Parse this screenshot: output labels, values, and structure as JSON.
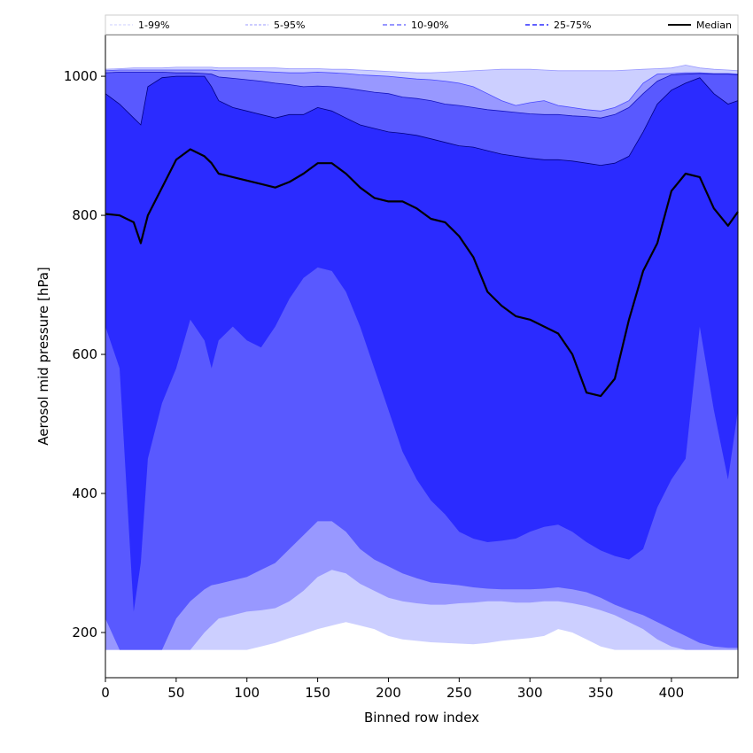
{
  "chart_data": {
    "type": "area",
    "title": "",
    "xlabel": "Binned row index",
    "ylabel": "Aerosol mid pressure [hPa]",
    "xlim": [
      0,
      447
    ],
    "ylim": [
      135,
      1060
    ],
    "xticks": [
      0,
      50,
      100,
      150,
      200,
      250,
      300,
      350,
      400
    ],
    "yticks": [
      200,
      400,
      600,
      800,
      1000
    ],
    "grid": false,
    "legend_position": "top",
    "colors": {
      "band_1_99": "#cccfff",
      "band_5_95": "#9898ff",
      "band_10_90": "#5959ff",
      "band_25_75": "#2b2bff",
      "median": "#000000"
    },
    "legend": [
      {
        "label": "1-99%",
        "style": "band_1_99"
      },
      {
        "label": "5-95%",
        "style": "band_5_95"
      },
      {
        "label": "10-90%",
        "style": "band_10_90"
      },
      {
        "label": "25-75%",
        "style": "band_25_75"
      },
      {
        "label": "Median",
        "style": "median"
      }
    ],
    "x": [
      0,
      10,
      20,
      25,
      30,
      40,
      50,
      60,
      70,
      75,
      80,
      90,
      100,
      110,
      120,
      130,
      140,
      150,
      160,
      170,
      180,
      190,
      200,
      210,
      220,
      230,
      240,
      250,
      260,
      270,
      280,
      290,
      300,
      310,
      320,
      330,
      340,
      350,
      360,
      370,
      380,
      390,
      400,
      410,
      420,
      430,
      440,
      447
    ],
    "bands": [
      {
        "name": "1-99%",
        "lower": [
          175,
          175,
          175,
          175,
          175,
          175,
          175,
          175,
          175,
          175,
          175,
          175,
          175,
          180,
          185,
          192,
          198,
          205,
          210,
          215,
          210,
          205,
          195,
          190,
          188,
          186,
          185,
          184,
          183,
          185,
          188,
          190,
          192,
          195,
          205,
          200,
          190,
          180,
          175,
          175,
          175,
          175,
          175,
          175,
          175,
          175,
          175,
          175
        ],
        "upper": [
          1010,
          1011,
          1012,
          1012,
          1012,
          1012,
          1013,
          1013,
          1013,
          1013,
          1012,
          1012,
          1012,
          1012,
          1012,
          1011,
          1011,
          1011,
          1010,
          1010,
          1009,
          1008,
          1007,
          1006,
          1005,
          1005,
          1006,
          1007,
          1008,
          1009,
          1010,
          1010,
          1010,
          1009,
          1008,
          1008,
          1008,
          1008,
          1008,
          1009,
          1010,
          1011,
          1012,
          1016,
          1012,
          1010,
          1009,
          1008
        ]
      },
      {
        "name": "5-95%",
        "lower": [
          175,
          175,
          175,
          175,
          175,
          175,
          175,
          175,
          200,
          210,
          220,
          225,
          230,
          232,
          235,
          245,
          260,
          280,
          290,
          285,
          270,
          260,
          250,
          245,
          242,
          240,
          240,
          242,
          243,
          245,
          245,
          243,
          243,
          245,
          245,
          242,
          238,
          232,
          225,
          215,
          205,
          190,
          180,
          175,
          175,
          175,
          175,
          175
        ],
        "upper": [
          1008,
          1009,
          1009,
          1009,
          1009,
          1009,
          1009,
          1009,
          1009,
          1009,
          1008,
          1008,
          1008,
          1007,
          1006,
          1005,
          1005,
          1006,
          1005,
          1004,
          1002,
          1001,
          1000,
          998,
          996,
          995,
          993,
          990,
          985,
          975,
          965,
          958,
          962,
          965,
          958,
          955,
          952,
          950,
          955,
          965,
          990,
          1003,
          1004,
          1005,
          1005,
          1004,
          1004,
          1003
        ]
      },
      {
        "name": "10-90%",
        "lower": [
          220,
          175,
          175,
          175,
          175,
          175,
          220,
          245,
          262,
          268,
          270,
          275,
          280,
          290,
          300,
          320,
          340,
          360,
          360,
          345,
          320,
          305,
          295,
          285,
          278,
          272,
          270,
          268,
          265,
          263,
          262,
          262,
          262,
          263,
          265,
          262,
          258,
          250,
          240,
          232,
          225,
          215,
          205,
          195,
          185,
          180,
          178,
          178
        ],
        "upper": [
          1005,
          1006,
          1006,
          1006,
          1006,
          1006,
          1005,
          1005,
          1004,
          1003,
          999,
          997,
          995,
          993,
          990,
          988,
          985,
          986,
          985,
          983,
          980,
          977,
          975,
          970,
          968,
          965,
          960,
          958,
          955,
          952,
          950,
          948,
          946,
          945,
          945,
          943,
          942,
          940,
          945,
          955,
          975,
          993,
          1002,
          1003,
          1004,
          1003,
          1003,
          1002
        ]
      },
      {
        "name": "25-75%",
        "lower": [
          640,
          580,
          230,
          300,
          450,
          530,
          580,
          650,
          620,
          580,
          620,
          640,
          620,
          610,
          640,
          680,
          710,
          725,
          720,
          690,
          640,
          580,
          520,
          460,
          420,
          390,
          370,
          345,
          335,
          330,
          332,
          335,
          345,
          352,
          355,
          345,
          330,
          318,
          310,
          305,
          320,
          380,
          420,
          450,
          640,
          520,
          420,
          520
        ],
        "upper": [
          975,
          960,
          940,
          930,
          985,
          998,
          1000,
          1000,
          1000,
          985,
          965,
          955,
          950,
          945,
          940,
          945,
          945,
          955,
          950,
          940,
          930,
          925,
          920,
          918,
          915,
          910,
          905,
          900,
          898,
          893,
          888,
          885,
          882,
          880,
          880,
          878,
          875,
          872,
          875,
          885,
          920,
          960,
          980,
          990,
          998,
          975,
          960,
          965
        ]
      }
    ],
    "series": [
      {
        "name": "Median",
        "values": [
          802,
          800,
          790,
          760,
          800,
          840,
          880,
          895,
          885,
          875,
          860,
          855,
          850,
          845,
          840,
          848,
          860,
          875,
          875,
          860,
          840,
          825,
          820,
          820,
          810,
          795,
          790,
          770,
          740,
          690,
          670,
          655,
          650,
          640,
          630,
          600,
          545,
          540,
          565,
          650,
          720,
          760,
          835,
          860,
          855,
          810,
          785,
          805
        ]
      }
    ]
  }
}
